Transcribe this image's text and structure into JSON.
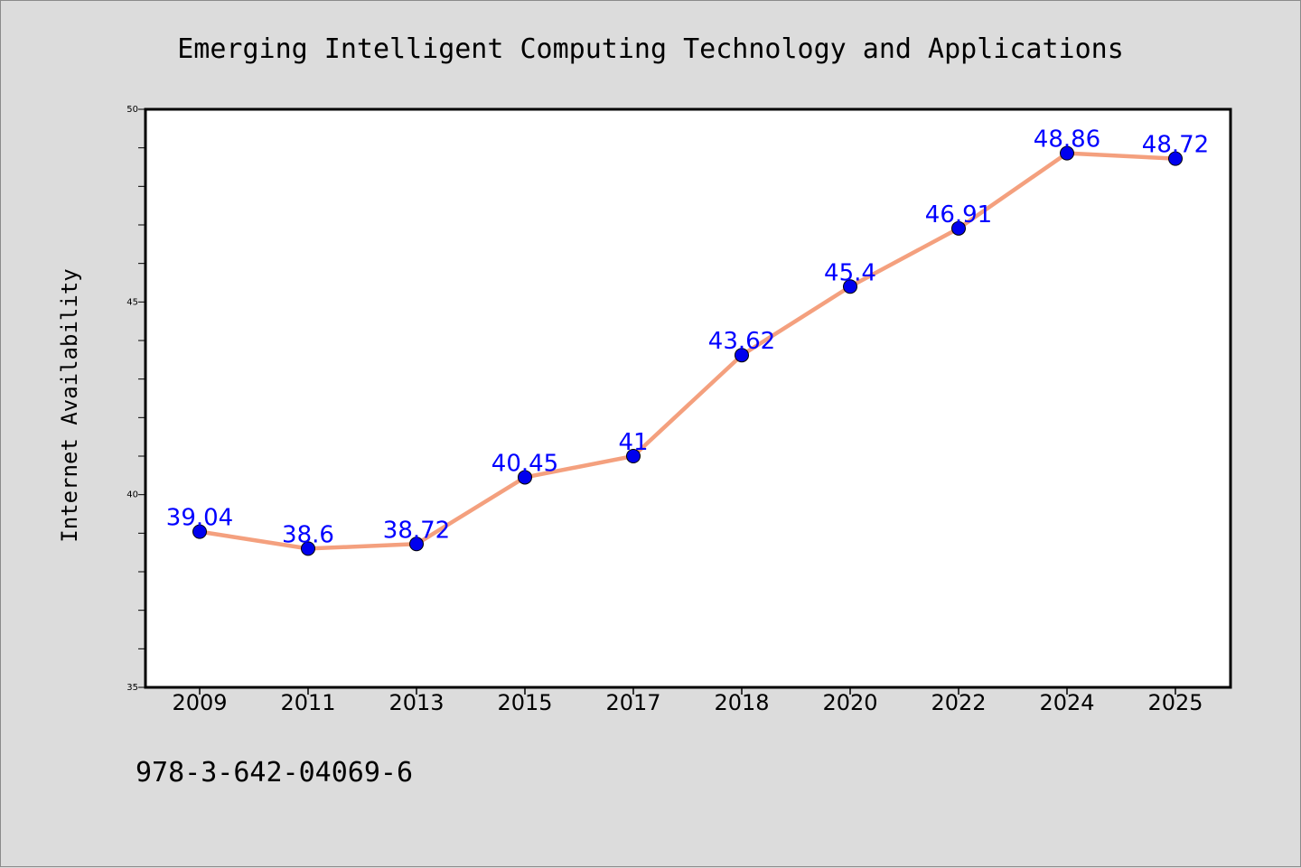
{
  "chart_data": {
    "type": "line",
    "title": "Emerging Intelligent Computing Technology and Applications",
    "xlabel": "",
    "ylabel": "Internet Availability",
    "categories": [
      "2009",
      "2011",
      "2013",
      "2015",
      "2017",
      "2018",
      "2020",
      "2022",
      "2024",
      "2025"
    ],
    "series": [
      {
        "values": [
          39.04,
          38.6,
          38.72,
          40.45,
          41,
          43.62,
          45.4,
          46.91,
          48.86,
          48.72
        ],
        "labels": [
          "39.04",
          "38.6",
          "38.72",
          "40.45",
          "41",
          "43.62",
          "45.4",
          "46.91",
          "48.86",
          "48.72"
        ],
        "line_color": "#f4a07e",
        "marker_color": "#0000ee",
        "label_color": "#0000ff"
      }
    ],
    "ylim": [
      35,
      50
    ],
    "yticks": [
      "35",
      "40",
      "45",
      "50"
    ],
    "y_minor_step": 1,
    "grid": false,
    "legend": "none"
  },
  "footer": {
    "isbn": "978-3-642-04069-6"
  },
  "colors": {
    "background": "#dcdcdc",
    "plot_background": "#ffffff",
    "axes": "#000000"
  }
}
